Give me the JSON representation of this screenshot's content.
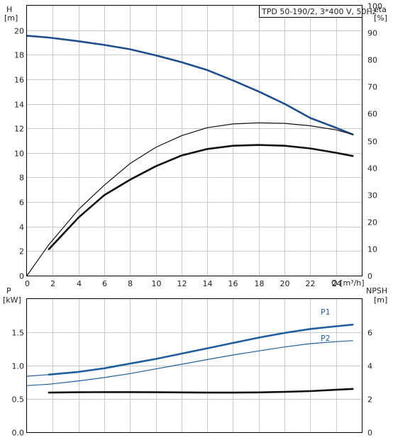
{
  "chart_data": [
    {
      "type": "line",
      "title": "TPD 50-190/2, 3*400 V, 50Hz",
      "xlabel": "Q [m³/h]",
      "xlim": [
        0,
        26
      ],
      "xticks": [
        0,
        2,
        4,
        6,
        8,
        10,
        12,
        14,
        16,
        18,
        20,
        22,
        24
      ],
      "y_left": {
        "label_top": "H",
        "label_unit": "[m]",
        "lim": [
          0,
          22
        ],
        "ticks": [
          0,
          2,
          4,
          6,
          8,
          10,
          12,
          14,
          16,
          18,
          20
        ]
      },
      "y_right": {
        "label_top": "eta",
        "label_unit": "[%]",
        "lim": [
          0,
          100
        ],
        "ticks": [
          0,
          10,
          20,
          30,
          40,
          50,
          60,
          70,
          80,
          90,
          100
        ]
      },
      "grid": true,
      "series": [
        {
          "key": "H",
          "axis": "left",
          "color": "#1f4e8c",
          "width": 2.6,
          "x": [
            0,
            1.7,
            4,
            6,
            8,
            10,
            12,
            14,
            16,
            18,
            20,
            22,
            24,
            25.3
          ],
          "y": [
            19.55,
            19.4,
            19.1,
            18.8,
            18.45,
            17.95,
            17.4,
            16.75,
            15.9,
            15.0,
            14.0,
            12.85,
            12.05,
            11.5
          ]
        },
        {
          "key": "eta_thin",
          "axis": "right",
          "color": "#111111",
          "width": 1.2,
          "x": [
            0,
            1.7,
            4,
            6,
            8,
            10,
            12,
            14,
            16,
            18,
            20,
            22,
            24,
            25.3
          ],
          "y": [
            0,
            11.5,
            24.5,
            33.5,
            41.5,
            47.5,
            51.8,
            54.8,
            56.2,
            56.6,
            56.4,
            55.5,
            54.0,
            52.3
          ]
        },
        {
          "key": "eta_thick",
          "axis": "right",
          "color": "#111111",
          "width": 2.6,
          "x": [
            1.7,
            4,
            6,
            8,
            10,
            12,
            14,
            16,
            18,
            20,
            22,
            24,
            25.3
          ],
          "y": [
            9.8,
            21.5,
            29.8,
            35.5,
            40.5,
            44.5,
            46.9,
            48.1,
            48.4,
            48.1,
            47.1,
            45.5,
            44.3
          ]
        }
      ]
    },
    {
      "type": "line",
      "xlim": [
        0,
        26
      ],
      "y_left": {
        "label_top": "P",
        "label_unit": "[kW]",
        "lim": [
          0,
          2.0
        ],
        "ticks": [
          0.0,
          0.5,
          1.0,
          1.5
        ]
      },
      "y_right": {
        "label_top": "NPSH",
        "label_unit": "[m]",
        "lim": [
          0,
          8
        ],
        "ticks": [
          0,
          2,
          4,
          6
        ]
      },
      "grid": true,
      "series": [
        {
          "key": "P1",
          "name": "P1",
          "axis": "left",
          "color": "#1f5f9e",
          "width": 2.6,
          "x": [
            1.7,
            4,
            6,
            8,
            10,
            12,
            14,
            16,
            18,
            20,
            22,
            24,
            25.3
          ],
          "y": [
            0.865,
            0.905,
            0.96,
            1.03,
            1.1,
            1.18,
            1.26,
            1.34,
            1.42,
            1.49,
            1.55,
            1.59,
            1.615
          ]
        },
        {
          "key": "P1_ext",
          "axis": "left",
          "color": "#1f5f9e",
          "width": 1.2,
          "x": [
            0,
            1.7
          ],
          "y": [
            0.84,
            0.865
          ]
        },
        {
          "key": "P2",
          "name": "P2",
          "axis": "left",
          "color": "#1f5f9e",
          "width": 1.2,
          "x": [
            0,
            1.7,
            4,
            6,
            8,
            10,
            12,
            14,
            16,
            18,
            20,
            22,
            24,
            25.3
          ],
          "y": [
            0.7,
            0.72,
            0.77,
            0.82,
            0.88,
            0.95,
            1.02,
            1.09,
            1.16,
            1.22,
            1.28,
            1.33,
            1.36,
            1.375
          ]
        },
        {
          "key": "NPSH",
          "axis": "right",
          "color": "#111111",
          "width": 2.6,
          "x": [
            1.7,
            4,
            6,
            8,
            10,
            12,
            14,
            16,
            18,
            20,
            22,
            24,
            25.3
          ],
          "y": [
            2.38,
            2.4,
            2.41,
            2.41,
            2.4,
            2.39,
            2.38,
            2.38,
            2.39,
            2.42,
            2.47,
            2.55,
            2.6
          ]
        }
      ]
    }
  ]
}
